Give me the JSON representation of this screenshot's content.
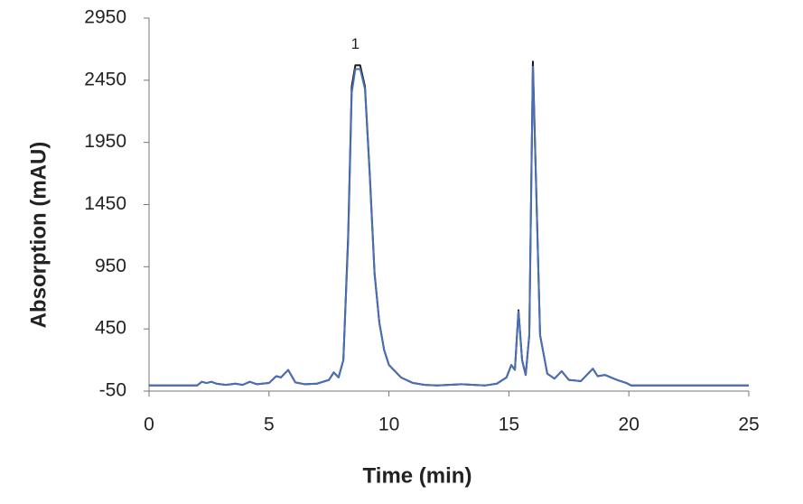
{
  "chart_data": {
    "type": "line",
    "x_label": "Time (min)",
    "y_label": "Absorption (mAU)",
    "annotations": [
      {
        "text": "1",
        "x": 8.6,
        "y": 2560
      }
    ],
    "xlim": [
      0,
      25
    ],
    "xticks": [
      0,
      5,
      10,
      15,
      20,
      25
    ],
    "ylim": [
      -50,
      2950
    ],
    "yticks": [
      -50,
      450,
      950,
      1450,
      1950,
      2450,
      2950
    ],
    "grid": false,
    "x": [
      0,
      1,
      2,
      2.2,
      2.4,
      2.6,
      2.8,
      3.2,
      3.6,
      3.9,
      4.2,
      4.5,
      5,
      5.3,
      5.5,
      5.8,
      6.1,
      6.5,
      7,
      7.5,
      7.7,
      7.9,
      8.1,
      8.3,
      8.45,
      8.6,
      8.8,
      9.0,
      9.2,
      9.4,
      9.6,
      9.8,
      10,
      10.5,
      11,
      11.5,
      12,
      13,
      14,
      14.5,
      14.9,
      15.1,
      15.25,
      15.4,
      15.55,
      15.7,
      15.85,
      16.0,
      16.15,
      16.3,
      16.6,
      16.9,
      17.2,
      17.5,
      18,
      18.5,
      18.7,
      19,
      19.5,
      19.9,
      20.1,
      21,
      25
    ],
    "series": [
      {
        "color": "#1a1a1a",
        "values": [
          -5,
          -5,
          -5,
          25,
          15,
          25,
          10,
          0,
          10,
          0,
          25,
          5,
          15,
          70,
          60,
          120,
          20,
          5,
          10,
          40,
          100,
          60,
          200,
          1200,
          2400,
          2570,
          2570,
          2400,
          1700,
          900,
          500,
          280,
          160,
          60,
          15,
          0,
          -5,
          5,
          -5,
          10,
          60,
          160,
          120,
          600,
          200,
          80,
          400,
          2600,
          1500,
          400,
          90,
          50,
          110,
          40,
          30,
          130,
          70,
          80,
          40,
          15,
          -5,
          -5,
          -5
        ]
      },
      {
        "color": "#4a6fb5",
        "values": [
          -5,
          -5,
          -5,
          25,
          15,
          25,
          10,
          0,
          10,
          0,
          25,
          5,
          15,
          70,
          60,
          120,
          20,
          5,
          10,
          40,
          100,
          60,
          200,
          1150,
          2350,
          2540,
          2540,
          2380,
          1680,
          890,
          500,
          280,
          160,
          60,
          15,
          0,
          -5,
          5,
          -5,
          10,
          60,
          160,
          120,
          590,
          200,
          80,
          400,
          2560,
          1480,
          400,
          90,
          50,
          110,
          40,
          30,
          130,
          70,
          80,
          40,
          15,
          -5,
          -5,
          -5
        ]
      }
    ]
  }
}
